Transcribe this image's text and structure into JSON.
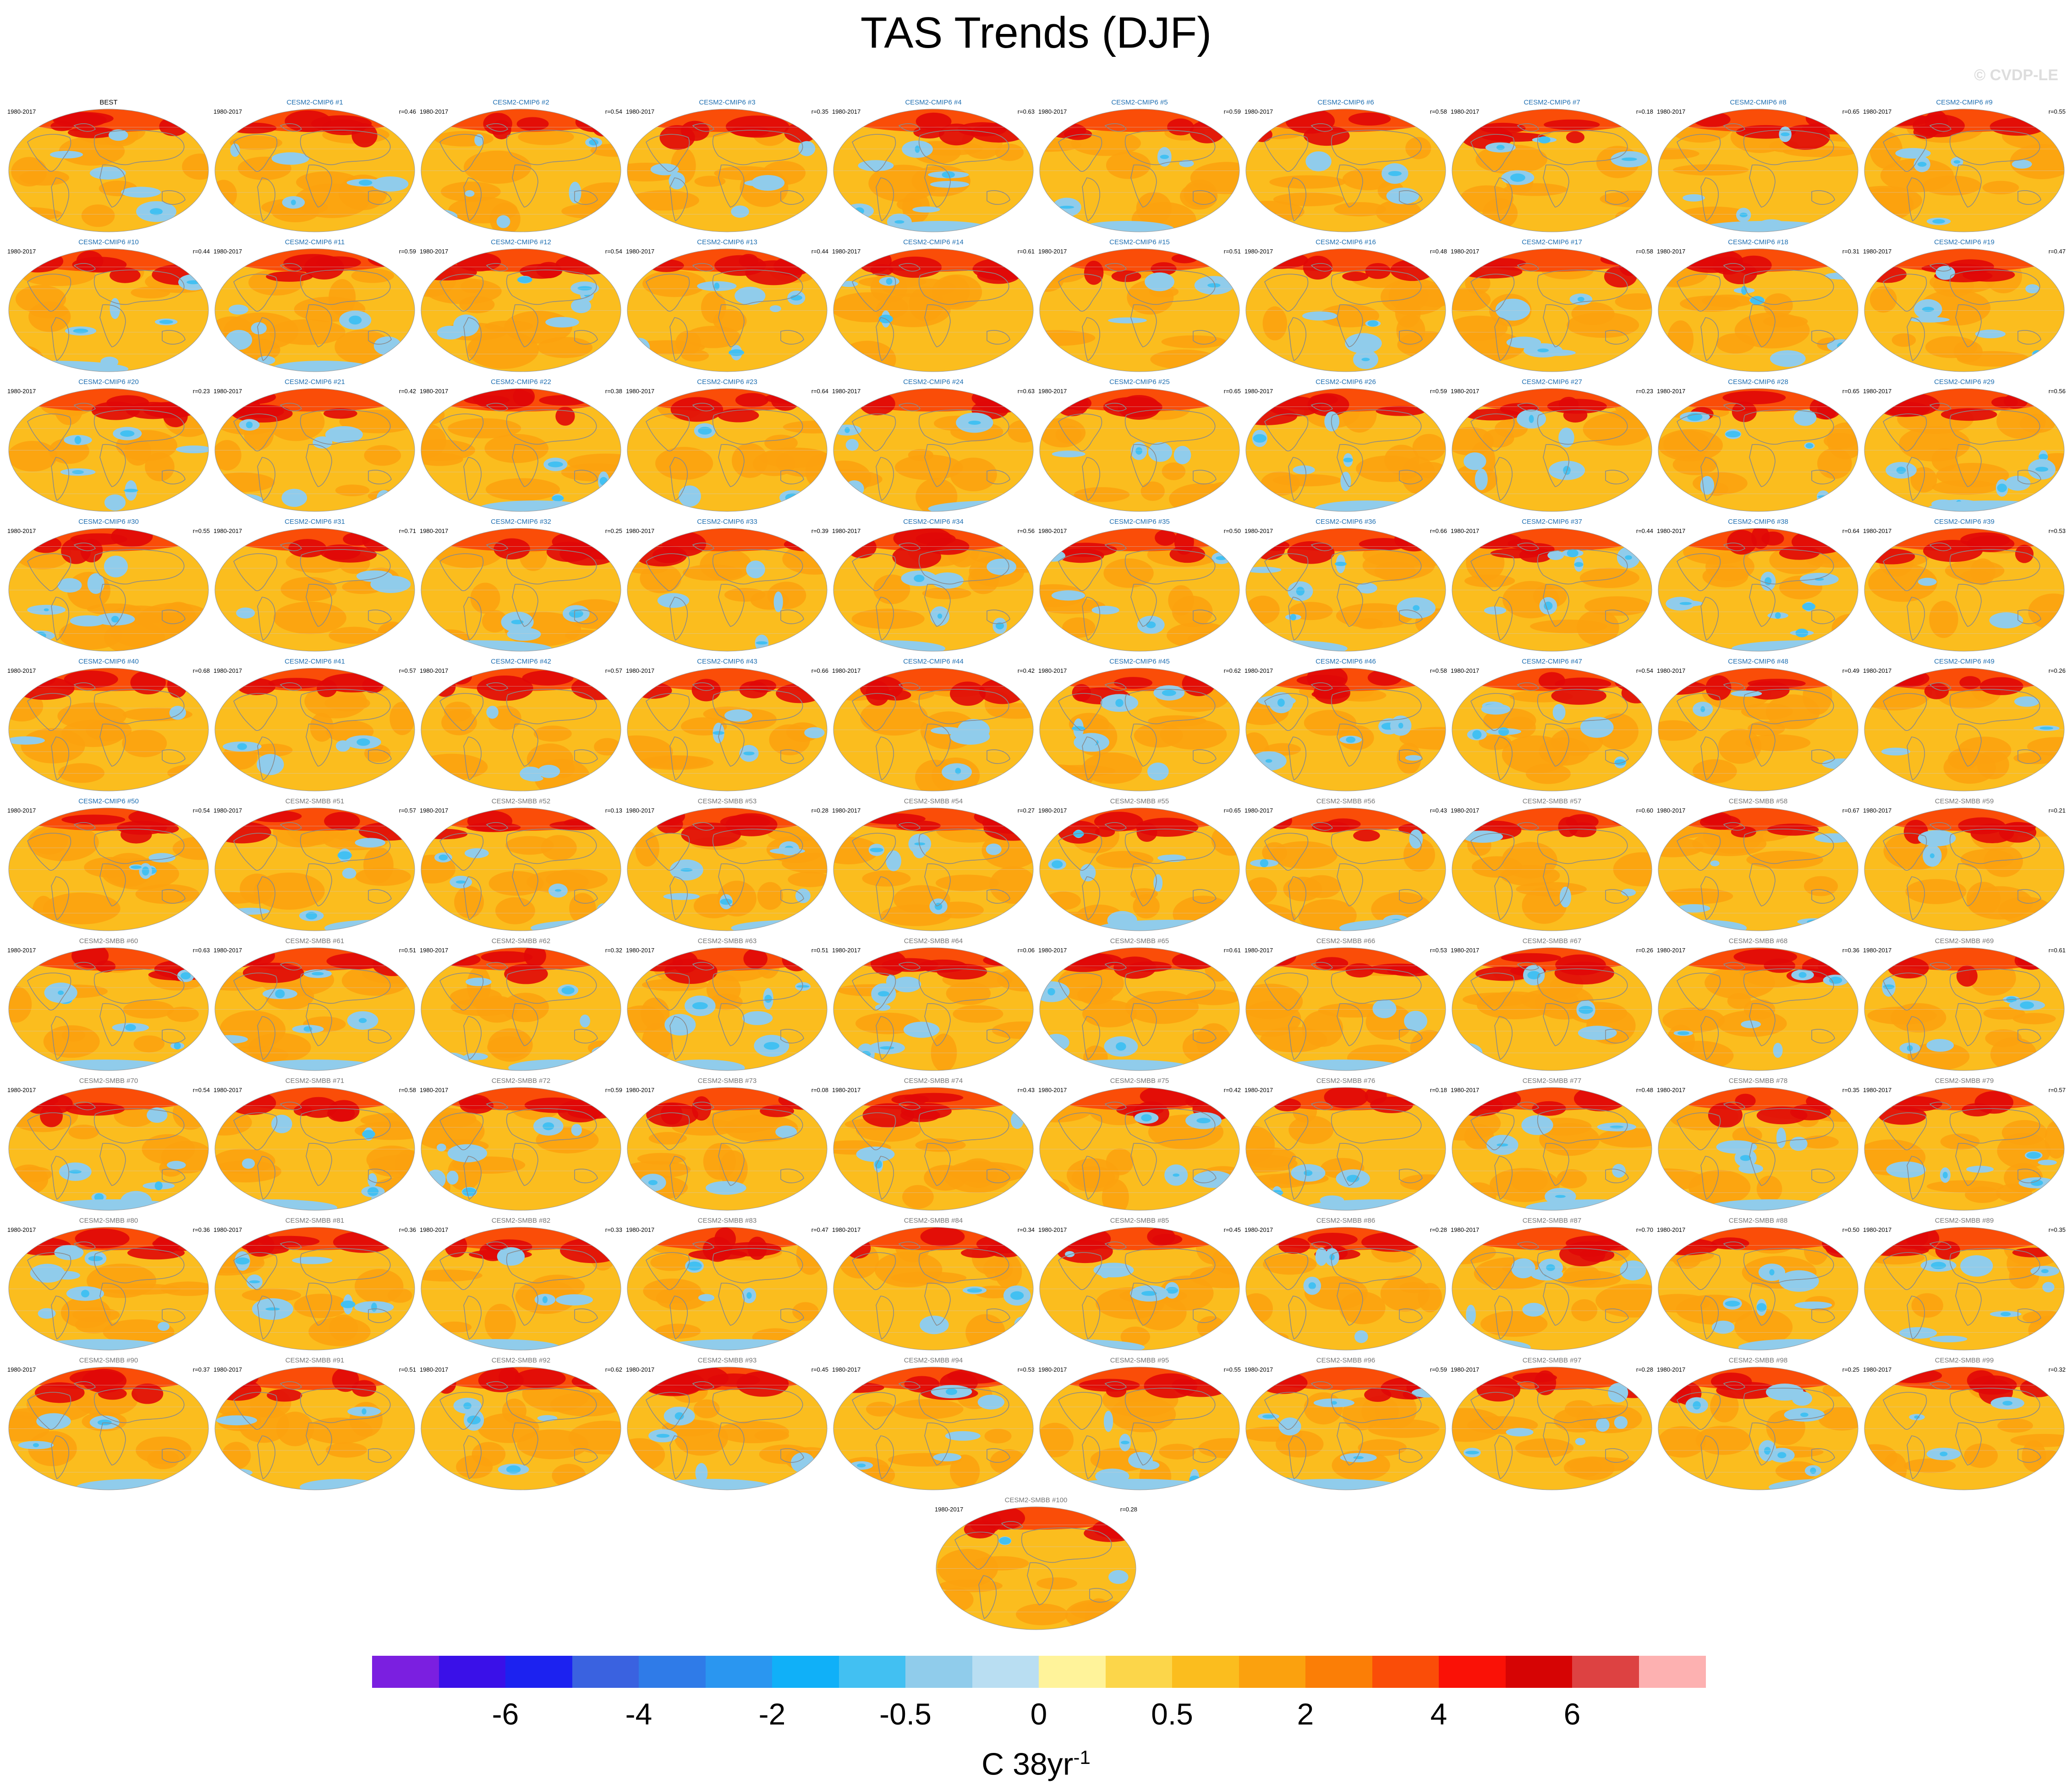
{
  "title": "TAS Trends (DJF)",
  "watermark": "© CVDP-LE",
  "period": "1980-2017",
  "panels": [
    {
      "name": "BEST",
      "corr": "",
      "group": "obs"
    },
    {
      "name": "CESM2-CMIP6 #1",
      "corr": "r=0.46",
      "group": "cmip6"
    },
    {
      "name": "CESM2-CMIP6 #2",
      "corr": "r=0.54",
      "group": "cmip6"
    },
    {
      "name": "CESM2-CMIP6 #3",
      "corr": "r=0.35",
      "group": "cmip6"
    },
    {
      "name": "CESM2-CMIP6 #4",
      "corr": "r=0.63",
      "group": "cmip6"
    },
    {
      "name": "CESM2-CMIP6 #5",
      "corr": "r=0.59",
      "group": "cmip6"
    },
    {
      "name": "CESM2-CMIP6 #6",
      "corr": "r=0.58",
      "group": "cmip6"
    },
    {
      "name": "CESM2-CMIP6 #7",
      "corr": "r=0.18",
      "group": "cmip6"
    },
    {
      "name": "CESM2-CMIP6 #8",
      "corr": "r=0.65",
      "group": "cmip6"
    },
    {
      "name": "CESM2-CMIP6 #9",
      "corr": "r=0.55",
      "group": "cmip6"
    },
    {
      "name": "CESM2-CMIP6 #10",
      "corr": "r=0.44",
      "group": "cmip6"
    },
    {
      "name": "CESM2-CMIP6 #11",
      "corr": "r=0.59",
      "group": "cmip6"
    },
    {
      "name": "CESM2-CMIP6 #12",
      "corr": "r=0.54",
      "group": "cmip6"
    },
    {
      "name": "CESM2-CMIP6 #13",
      "corr": "r=0.44",
      "group": "cmip6"
    },
    {
      "name": "CESM2-CMIP6 #14",
      "corr": "r=0.61",
      "group": "cmip6"
    },
    {
      "name": "CESM2-CMIP6 #15",
      "corr": "r=0.51",
      "group": "cmip6"
    },
    {
      "name": "CESM2-CMIP6 #16",
      "corr": "r=0.48",
      "group": "cmip6"
    },
    {
      "name": "CESM2-CMIP6 #17",
      "corr": "r=0.58",
      "group": "cmip6"
    },
    {
      "name": "CESM2-CMIP6 #18",
      "corr": "r=0.31",
      "group": "cmip6"
    },
    {
      "name": "CESM2-CMIP6 #19",
      "corr": "r=0.47",
      "group": "cmip6"
    },
    {
      "name": "CESM2-CMIP6 #20",
      "corr": "r=0.23",
      "group": "cmip6"
    },
    {
      "name": "CESM2-CMIP6 #21",
      "corr": "r=0.42",
      "group": "cmip6"
    },
    {
      "name": "CESM2-CMIP6 #22",
      "corr": "r=0.38",
      "group": "cmip6"
    },
    {
      "name": "CESM2-CMIP6 #23",
      "corr": "r=0.64",
      "group": "cmip6"
    },
    {
      "name": "CESM2-CMIP6 #24",
      "corr": "r=0.63",
      "group": "cmip6"
    },
    {
      "name": "CESM2-CMIP6 #25",
      "corr": "r=0.65",
      "group": "cmip6"
    },
    {
      "name": "CESM2-CMIP6 #26",
      "corr": "r=0.59",
      "group": "cmip6"
    },
    {
      "name": "CESM2-CMIP6 #27",
      "corr": "r=0.23",
      "group": "cmip6"
    },
    {
      "name": "CESM2-CMIP6 #28",
      "corr": "r=0.65",
      "group": "cmip6"
    },
    {
      "name": "CESM2-CMIP6 #29",
      "corr": "r=0.56",
      "group": "cmip6"
    },
    {
      "name": "CESM2-CMIP6 #30",
      "corr": "r=0.55",
      "group": "cmip6"
    },
    {
      "name": "CESM2-CMIP6 #31",
      "corr": "r=0.71",
      "group": "cmip6"
    },
    {
      "name": "CESM2-CMIP6 #32",
      "corr": "r=0.25",
      "group": "cmip6"
    },
    {
      "name": "CESM2-CMIP6 #33",
      "corr": "r=0.39",
      "group": "cmip6"
    },
    {
      "name": "CESM2-CMIP6 #34",
      "corr": "r=0.56",
      "group": "cmip6"
    },
    {
      "name": "CESM2-CMIP6 #35",
      "corr": "r=0.50",
      "group": "cmip6"
    },
    {
      "name": "CESM2-CMIP6 #36",
      "corr": "r=0.66",
      "group": "cmip6"
    },
    {
      "name": "CESM2-CMIP6 #37",
      "corr": "r=0.44",
      "group": "cmip6"
    },
    {
      "name": "CESM2-CMIP6 #38",
      "corr": "r=0.64",
      "group": "cmip6"
    },
    {
      "name": "CESM2-CMIP6 #39",
      "corr": "r=0.53",
      "group": "cmip6"
    },
    {
      "name": "CESM2-CMIP6 #40",
      "corr": "r=0.68",
      "group": "cmip6"
    },
    {
      "name": "CESM2-CMIP6 #41",
      "corr": "r=0.57",
      "group": "cmip6"
    },
    {
      "name": "CESM2-CMIP6 #42",
      "corr": "r=0.57",
      "group": "cmip6"
    },
    {
      "name": "CESM2-CMIP6 #43",
      "corr": "r=0.66",
      "group": "cmip6"
    },
    {
      "name": "CESM2-CMIP6 #44",
      "corr": "r=0.42",
      "group": "cmip6"
    },
    {
      "name": "CESM2-CMIP6 #45",
      "corr": "r=0.62",
      "group": "cmip6"
    },
    {
      "name": "CESM2-CMIP6 #46",
      "corr": "r=0.58",
      "group": "cmip6"
    },
    {
      "name": "CESM2-CMIP6 #47",
      "corr": "r=0.54",
      "group": "cmip6"
    },
    {
      "name": "CESM2-CMIP6 #48",
      "corr": "r=0.49",
      "group": "cmip6"
    },
    {
      "name": "CESM2-CMIP6 #49",
      "corr": "r=0.26",
      "group": "cmip6"
    },
    {
      "name": "CESM2-CMIP6 #50",
      "corr": "r=0.54",
      "group": "cmip6"
    },
    {
      "name": "CESM2-SMBB #51",
      "corr": "r=0.57",
      "group": "smbb"
    },
    {
      "name": "CESM2-SMBB #52",
      "corr": "r=0.13",
      "group": "smbb"
    },
    {
      "name": "CESM2-SMBB #53",
      "corr": "r=0.28",
      "group": "smbb"
    },
    {
      "name": "CESM2-SMBB #54",
      "corr": "r=0.27",
      "group": "smbb"
    },
    {
      "name": "CESM2-SMBB #55",
      "corr": "r=0.65",
      "group": "smbb"
    },
    {
      "name": "CESM2-SMBB #56",
      "corr": "r=0.43",
      "group": "smbb"
    },
    {
      "name": "CESM2-SMBB #57",
      "corr": "r=0.60",
      "group": "smbb"
    },
    {
      "name": "CESM2-SMBB #58",
      "corr": "r=0.67",
      "group": "smbb"
    },
    {
      "name": "CESM2-SMBB #59",
      "corr": "r=0.21",
      "group": "smbb"
    },
    {
      "name": "CESM2-SMBB #60",
      "corr": "r=0.63",
      "group": "smbb"
    },
    {
      "name": "CESM2-SMBB #61",
      "corr": "r=0.51",
      "group": "smbb"
    },
    {
      "name": "CESM2-SMBB #62",
      "corr": "r=0.32",
      "group": "smbb"
    },
    {
      "name": "CESM2-SMBB #63",
      "corr": "r=0.51",
      "group": "smbb"
    },
    {
      "name": "CESM2-SMBB #64",
      "corr": "r=0.06",
      "group": "smbb"
    },
    {
      "name": "CESM2-SMBB #65",
      "corr": "r=0.61",
      "group": "smbb"
    },
    {
      "name": "CESM2-SMBB #66",
      "corr": "r=0.53",
      "group": "smbb"
    },
    {
      "name": "CESM2-SMBB #67",
      "corr": "r=0.26",
      "group": "smbb"
    },
    {
      "name": "CESM2-SMBB #68",
      "corr": "r=0.36",
      "group": "smbb"
    },
    {
      "name": "CESM2-SMBB #69",
      "corr": "r=0.61",
      "group": "smbb"
    },
    {
      "name": "CESM2-SMBB #70",
      "corr": "r=0.54",
      "group": "smbb"
    },
    {
      "name": "CESM2-SMBB #71",
      "corr": "r=0.58",
      "group": "smbb"
    },
    {
      "name": "CESM2-SMBB #72",
      "corr": "r=0.59",
      "group": "smbb"
    },
    {
      "name": "CESM2-SMBB #73",
      "corr": "r=0.08",
      "group": "smbb"
    },
    {
      "name": "CESM2-SMBB #74",
      "corr": "r=0.43",
      "group": "smbb"
    },
    {
      "name": "CESM2-SMBB #75",
      "corr": "r=0.42",
      "group": "smbb"
    },
    {
      "name": "CESM2-SMBB #76",
      "corr": "r=0.18",
      "group": "smbb"
    },
    {
      "name": "CESM2-SMBB #77",
      "corr": "r=0.48",
      "group": "smbb"
    },
    {
      "name": "CESM2-SMBB #78",
      "corr": "r=0.35",
      "group": "smbb"
    },
    {
      "name": "CESM2-SMBB #79",
      "corr": "r=0.57",
      "group": "smbb"
    },
    {
      "name": "CESM2-SMBB #80",
      "corr": "r=0.36",
      "group": "smbb"
    },
    {
      "name": "CESM2-SMBB #81",
      "corr": "r=0.36",
      "group": "smbb"
    },
    {
      "name": "CESM2-SMBB #82",
      "corr": "r=0.33",
      "group": "smbb"
    },
    {
      "name": "CESM2-SMBB #83",
      "corr": "r=0.47",
      "group": "smbb"
    },
    {
      "name": "CESM2-SMBB #84",
      "corr": "r=0.34",
      "group": "smbb"
    },
    {
      "name": "CESM2-SMBB #85",
      "corr": "r=0.45",
      "group": "smbb"
    },
    {
      "name": "CESM2-SMBB #86",
      "corr": "r=0.28",
      "group": "smbb"
    },
    {
      "name": "CESM2-SMBB #87",
      "corr": "r=0.70",
      "group": "smbb"
    },
    {
      "name": "CESM2-SMBB #88",
      "corr": "r=0.50",
      "group": "smbb"
    },
    {
      "name": "CESM2-SMBB #89",
      "corr": "r=0.35",
      "group": "smbb"
    },
    {
      "name": "CESM2-SMBB #90",
      "corr": "r=0.37",
      "group": "smbb"
    },
    {
      "name": "CESM2-SMBB #91",
      "corr": "r=0.51",
      "group": "smbb"
    },
    {
      "name": "CESM2-SMBB #92",
      "corr": "r=0.62",
      "group": "smbb"
    },
    {
      "name": "CESM2-SMBB #93",
      "corr": "r=0.45",
      "group": "smbb"
    },
    {
      "name": "CESM2-SMBB #94",
      "corr": "r=0.53",
      "group": "smbb"
    },
    {
      "name": "CESM2-SMBB #95",
      "corr": "r=0.55",
      "group": "smbb"
    },
    {
      "name": "CESM2-SMBB #96",
      "corr": "r=0.59",
      "group": "smbb"
    },
    {
      "name": "CESM2-SMBB #97",
      "corr": "r=0.28",
      "group": "smbb"
    },
    {
      "name": "CESM2-SMBB #98",
      "corr": "r=0.25",
      "group": "smbb"
    },
    {
      "name": "CESM2-SMBB #99",
      "corr": "r=0.32",
      "group": "smbb"
    },
    {
      "name": "CESM2-SMBB #100",
      "corr": "r=0.28",
      "group": "smbb"
    }
  ],
  "chart_data": {
    "type": "heatmap",
    "title": "TAS Trends (DJF)",
    "projection": "global map panels",
    "colorbar": {
      "colors": [
        "#7b1fe0",
        "#3a10e8",
        "#1c22f0",
        "#3a62e0",
        "#2f7be8",
        "#2a96f0",
        "#10b0f8",
        "#42c0f2",
        "#90cceb",
        "#b9def2",
        "#fff39a",
        "#fcd64a",
        "#fbbd1e",
        "#fba10e",
        "#fb7e06",
        "#fa4d08",
        "#fa1106",
        "#d60404",
        "#dd4242",
        "#fdb1b1"
      ],
      "tick_labels": [
        "-6",
        "-4",
        "-2",
        "-0.5",
        "0",
        "0.5",
        "2",
        "4",
        "6"
      ],
      "tick_after_box": [
        2,
        4,
        6,
        8,
        10,
        12,
        14,
        16,
        18
      ],
      "units_base": "C 38yr",
      "units_exp": "-1"
    },
    "palette": {
      "ocean_base": "#fbbd1e",
      "warm": "#fba10e",
      "hot": "#fa4d08",
      "very_hot": "#e00808",
      "cool": "#90cceb",
      "cold": "#42c0f2",
      "coast": "#8a8a8a",
      "grid": "#cccccc"
    }
  }
}
